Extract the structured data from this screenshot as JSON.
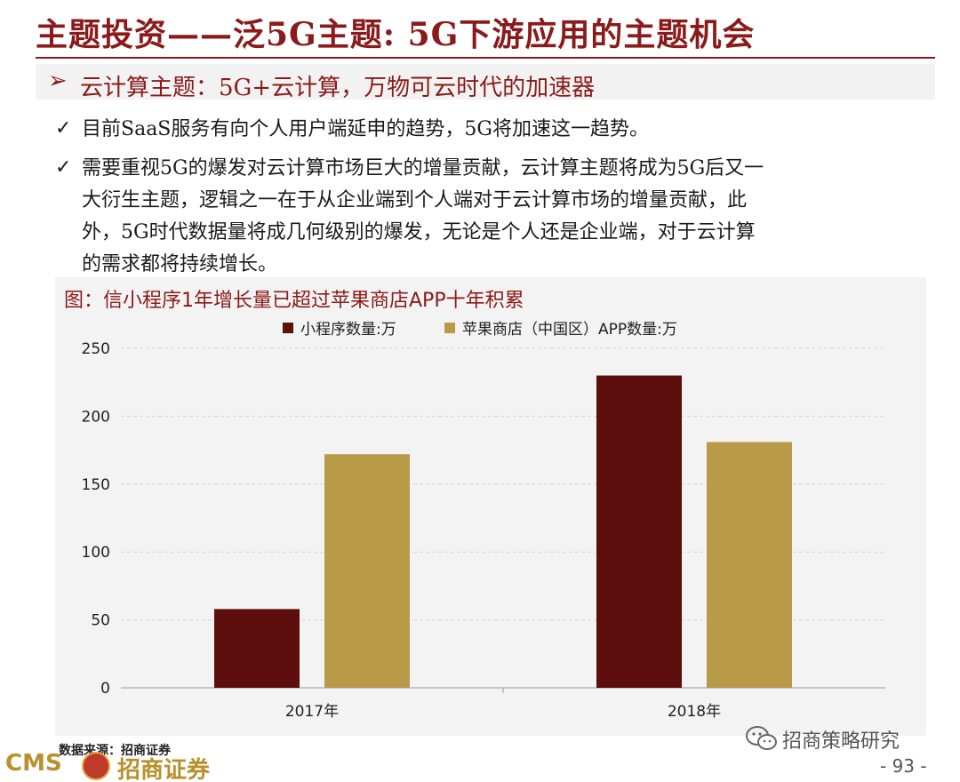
{
  "header": {
    "title": "主题投资——泛5G主题: 5G下游应用的主题机会",
    "subtitle_marker": "➢",
    "subtitle": "云计算主题：5G+云计算，万物可云时代的加速器"
  },
  "bullets": [
    {
      "marker": "✓",
      "text": "目前SaaS服务有向个人用户端延申的趋势，5G将加速这一趋势。"
    },
    {
      "marker": "✓",
      "text": "需要重视5G的爆发对云计算市场巨大的增量贡献，云计算主题将成为5G后又一大衍生主题，逻辑之一在于从企业端到个人端对于云计算市场的增量贡献，此外，5G时代数据量将成几何级别的爆发，无论是个人还是企业端，对于云计算的需求都将持续增长。"
    }
  ],
  "chart_data": {
    "type": "bar",
    "title": "图：信小程序1年增长量已超过苹果商店APP十年积累",
    "categories": [
      "2017年",
      "2018年"
    ],
    "series": [
      {
        "name": "小程序数量:万",
        "color": "#5c0f0c",
        "values": [
          58,
          230
        ]
      },
      {
        "name": "苹果商店（中国区）APP数量:万",
        "color": "#b99a48",
        "values": [
          172,
          181
        ]
      }
    ],
    "ylim": [
      0,
      250
    ],
    "yticks": [
      0,
      50,
      100,
      150,
      200,
      250
    ],
    "grid": true,
    "legend_position": "top-center"
  },
  "footer": {
    "source": "数据来源：招商证券",
    "logo_text": "CMS",
    "logo_cn": "招商证券",
    "watermark": "招商策略研究",
    "page": "- 93 -"
  },
  "colors": {
    "brand": "#8b1a1a",
    "panel": "#f3f3f3",
    "gold": "#b8912e"
  },
  "icons": [
    "wechat-icon",
    "checkmark-icon",
    "arrow-marker-icon"
  ]
}
